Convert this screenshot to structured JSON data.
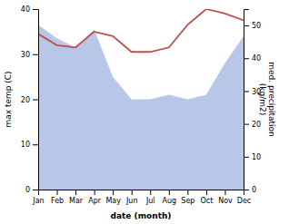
{
  "chart_data": {
    "type": "line",
    "xlabel": "date (month)",
    "ylabel": "max temp (C)",
    "y2label": "med. precipitation\n(kg/m2)",
    "categories": [
      "Jan",
      "Feb",
      "Mar",
      "Apr",
      "May",
      "Jun",
      "Jul",
      "Aug",
      "Sep",
      "Oct",
      "Nov",
      "Dec"
    ],
    "series": [
      {
        "type": "area",
        "color": "#b8c6e8",
        "values": [
          36.5,
          33.5,
          31.5,
          35.5,
          25.0,
          20.0,
          20.0,
          21.0,
          20.0,
          21.0,
          28.0,
          34.0
        ]
      },
      {
        "type": "line",
        "color": "#c0504d",
        "values": [
          34.5,
          32.0,
          31.5,
          35.0,
          34.0,
          30.5,
          30.5,
          31.5,
          36.5,
          40.0,
          39.0,
          37.5
        ]
      }
    ],
    "ylim": [
      0,
      40
    ],
    "yticks": [
      0,
      10,
      20,
      30,
      40
    ],
    "y2lim": [
      0,
      55
    ],
    "y2ticks": [
      0,
      10,
      20,
      30,
      40,
      50
    ],
    "grid": false
  }
}
